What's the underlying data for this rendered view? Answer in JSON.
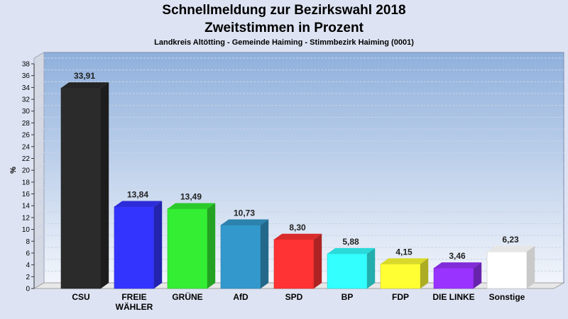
{
  "title": "Schnellmeldung zur Bezirkswahl 2018",
  "subtitle": "Zweitstimmen in Prozent",
  "location": "Landkreis Altötting - Gemeinde Haiming - Stimmbezirk Haiming (0001)",
  "chart_data": {
    "type": "bar",
    "ylabel": "%",
    "ylim": [
      0,
      38
    ],
    "ytick_step": 2,
    "grid": true,
    "categories": [
      [
        "CSU"
      ],
      [
        "FREIE",
        "WÄHLER"
      ],
      [
        "GRÜNE"
      ],
      [
        "AfD"
      ],
      [
        "SPD"
      ],
      [
        "BP"
      ],
      [
        "FDP"
      ],
      [
        "DIE LINKE"
      ],
      [
        "Sonstige"
      ]
    ],
    "values": [
      33.91,
      13.84,
      13.49,
      10.73,
      8.3,
      5.88,
      4.15,
      3.46,
      6.23
    ],
    "value_labels": [
      "33,91",
      "13,84",
      "13,49",
      "10,73",
      "8,30",
      "5,88",
      "4,15",
      "3,46",
      "6,23"
    ],
    "colors": [
      "#2b2b2b",
      "#3434ff",
      "#33ee33",
      "#3399cc",
      "#ff3333",
      "#33ffff",
      "#ffff33",
      "#9933ff",
      "#ffffff"
    ]
  }
}
